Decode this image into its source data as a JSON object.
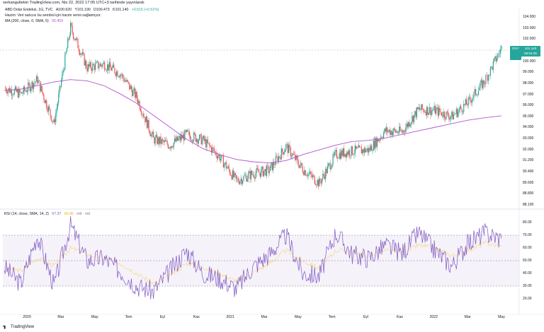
{
  "header": {
    "publish_line": "serkangultekin TradingView.com, Nis 22, 2022 17:05 UTC+3 tarihinde yayınlandı"
  },
  "legend": {
    "symbol_line": "ABD Dolar Endeksi, 1G, TVC",
    "open": "A100.620",
    "high": "Y101.190",
    "low": "D100.473",
    "close": "K101.140",
    "change": "+0.515 (+0.51%)",
    "volume_note": "Hacim: Veri satıcısı bu sembol için hacim verisi sağlamıyor.",
    "ma_label": "MA (200, close, 0, SMA, 5)",
    "ma_value": "95.459",
    "rsi_label": "RSI (14, close, SMA, 14, 2)",
    "rsi_value": "67.37",
    "rsi_ma_value": "60.86",
    "rsi_na1": "n/d",
    "rsi_na2": "n/d"
  },
  "price_badge": {
    "symbol": "DXY",
    "value": "101.140",
    "countdown": "06:54:25"
  },
  "price_axis": [
    "104.000",
    "103.000",
    "102.000",
    "101.000",
    "100.000",
    "99.000",
    "98.000",
    "97.000",
    "96.000",
    "95.000",
    "94.000",
    "93.000",
    "92.000",
    "91.200",
    "90.400",
    "89.600",
    "88.800",
    "88.100"
  ],
  "rsi_axis": [
    "80.00",
    "70.00",
    "60.00",
    "50.00",
    "40.00",
    "30.00",
    "20.00"
  ],
  "time_axis": [
    "2020",
    "Mar",
    "May",
    "Tem",
    "Eyl",
    "Kas",
    "2021",
    "Mar",
    "May",
    "Tem",
    "Eyl",
    "Kas",
    "2022",
    "Mar",
    "May"
  ],
  "colors": {
    "up": "#26a69a",
    "down": "#ef5350",
    "ma": "#b054d1",
    "rsi_line": "#7e57c2",
    "rsi_ma": "#f7d57a",
    "rsi_band": "#7e57c2"
  },
  "chart_data": [
    {
      "type": "candlestick",
      "title": "ABD Dolar Endeksi, 1G, TVC",
      "xlabel": "",
      "ylabel": "",
      "ylim": [
        88.1,
        104.0
      ],
      "x": [
        "2019-12",
        "2020-01",
        "2020-02",
        "2020-03a",
        "2020-03b",
        "2020-03c",
        "2020-04",
        "2020-05",
        "2020-06",
        "2020-07",
        "2020-08",
        "2020-09",
        "2020-10",
        "2020-11",
        "2020-12",
        "2021-01",
        "2021-02",
        "2021-03",
        "2021-04",
        "2021-05",
        "2021-06",
        "2021-07",
        "2021-08",
        "2021-09",
        "2021-10",
        "2021-11",
        "2021-12",
        "2022-01",
        "2022-02",
        "2022-03",
        "2022-04"
      ],
      "close": [
        97.8,
        97.3,
        98.5,
        94.8,
        102.9,
        99.5,
        99.8,
        99.0,
        97.0,
        93.5,
        93.0,
        93.9,
        93.4,
        92.0,
        90.0,
        90.6,
        90.9,
        92.9,
        91.0,
        89.8,
        92.2,
        92.5,
        92.6,
        94.2,
        94.1,
        96.0,
        95.9,
        95.4,
        96.6,
        98.4,
        101.14
      ],
      "ma": [
        97.6,
        97.7,
        98.0,
        98.3,
        98.5,
        98.4,
        98.0,
        97.3,
        96.5,
        95.5,
        94.5,
        93.5,
        92.7,
        92.2,
        91.8,
        91.6,
        91.5,
        91.7,
        92.2,
        92.6,
        93.0,
        93.3,
        93.4,
        93.6,
        93.9,
        94.2,
        94.5,
        94.8,
        95.1,
        95.3,
        95.459
      ]
    },
    {
      "type": "line",
      "title": "RSI (14, close, SMA, 14, 2)",
      "ylim": [
        15,
        85
      ],
      "bands": [
        30,
        50,
        70
      ],
      "x": [
        "2019-12",
        "2020-01",
        "2020-02",
        "2020-03a",
        "2020-03b",
        "2020-03c",
        "2020-04",
        "2020-05",
        "2020-06",
        "2020-07",
        "2020-08",
        "2020-09",
        "2020-10",
        "2020-11",
        "2020-12",
        "2021-01",
        "2021-02",
        "2021-03",
        "2021-04",
        "2021-05",
        "2021-06",
        "2021-07",
        "2021-08",
        "2021-09",
        "2021-10",
        "2021-11",
        "2021-12",
        "2022-01",
        "2022-02",
        "2022-03",
        "2022-04"
      ],
      "series": [
        {
          "name": "",
          "values": [
            45,
            32,
            70,
            30,
            78,
            50,
            52,
            42,
            30,
            26,
            42,
            58,
            40,
            36,
            28,
            45,
            55,
            70,
            40,
            38,
            72,
            55,
            52,
            62,
            56,
            72,
            58,
            46,
            64,
            72,
            67.37
          ]
        },
        {
          "name": "",
          "values": [
            45,
            42,
            52,
            46,
            60,
            55,
            52,
            48,
            40,
            32,
            38,
            48,
            45,
            40,
            34,
            40,
            48,
            58,
            50,
            44,
            58,
            58,
            54,
            58,
            56,
            62,
            60,
            54,
            58,
            64,
            60.86
          ]
        }
      ]
    }
  ]
}
